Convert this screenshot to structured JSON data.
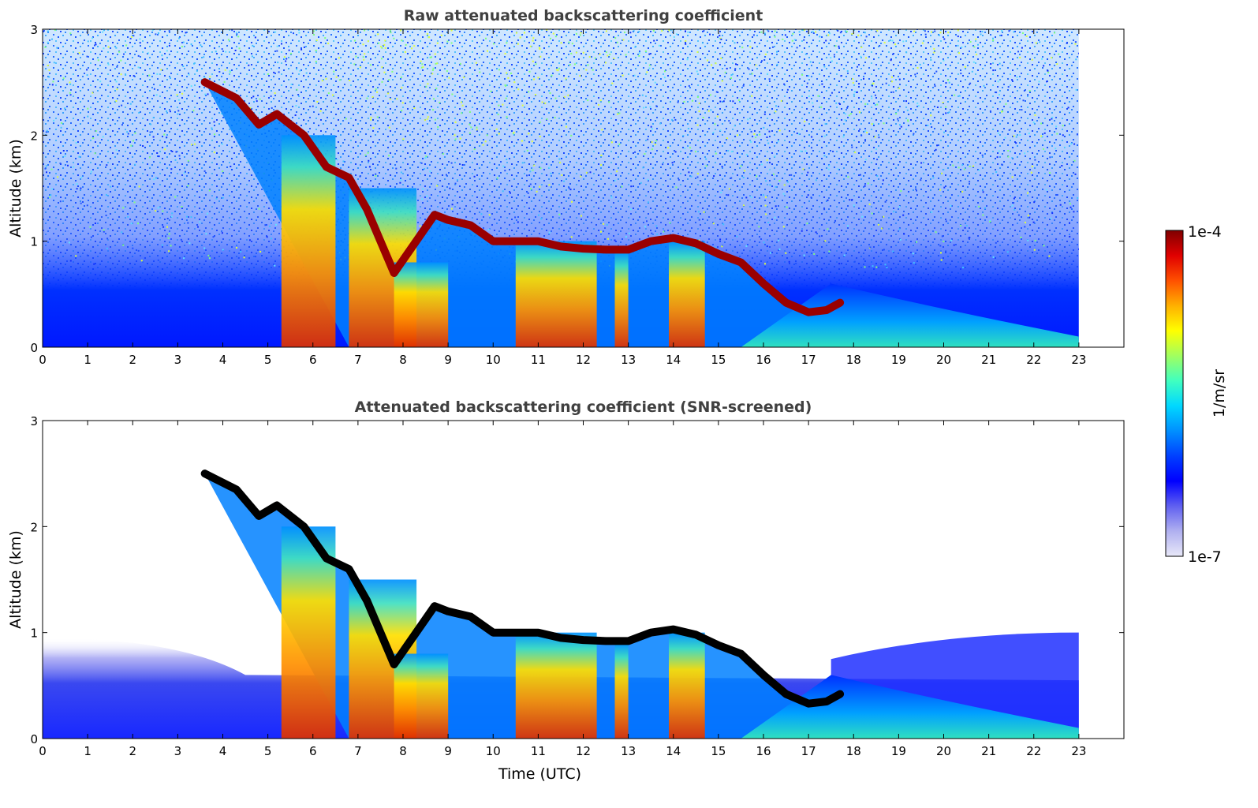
{
  "chart_data": [
    {
      "type": "heatmap",
      "title": "Raw attenuated backscattering coefficient",
      "xlabel": "",
      "ylabel": "Altitude (km)",
      "xlim": [
        0,
        24
      ],
      "ylim": [
        0,
        3
      ],
      "x_ticks": [
        "0",
        "1",
        "2",
        "3",
        "4",
        "5",
        "6",
        "7",
        "8",
        "9",
        "10",
        "11",
        "12",
        "13",
        "14",
        "15",
        "16",
        "17",
        "18",
        "19",
        "20",
        "21",
        "22",
        "23"
      ],
      "y_ticks": [
        "0",
        "1",
        "2",
        "3"
      ],
      "data_extent_hours": [
        0,
        23
      ],
      "cloud_base_layer": {
        "x": [
          3.6,
          4.3,
          4.8,
          5.2,
          5.8,
          6.3,
          6.8,
          7.2,
          7.5,
          7.8,
          8.7,
          9.0,
          9.5,
          10.0,
          10.5,
          11.0,
          11.5,
          12.0,
          12.5,
          13.0,
          13.5,
          14.0,
          14.5,
          15.0,
          15.5,
          16.0,
          16.5,
          17.0,
          17.4,
          17.7
        ],
        "y": [
          2.5,
          2.35,
          2.1,
          2.2,
          2.0,
          1.7,
          1.6,
          1.3,
          1.0,
          0.7,
          1.25,
          1.2,
          1.15,
          1.0,
          1.0,
          1.0,
          0.95,
          0.93,
          0.92,
          0.92,
          1.0,
          1.03,
          0.98,
          0.88,
          0.8,
          0.6,
          0.42,
          0.33,
          0.35,
          0.42
        ]
      },
      "precipitation_columns": [
        {
          "x0": 5.3,
          "x1": 6.5,
          "y_top": 2.0
        },
        {
          "x0": 6.8,
          "x1": 8.3,
          "y_top": 1.5
        },
        {
          "x0": 7.8,
          "x1": 9.0,
          "y_top": 0.8
        },
        {
          "x0": 10.5,
          "x1": 12.3,
          "y_top": 1.0
        },
        {
          "x0": 12.7,
          "x1": 13.0,
          "y_top": 0.9
        },
        {
          "x0": 13.9,
          "x1": 14.7,
          "y_top": 1.0
        }
      ],
      "noise": true
    },
    {
      "type": "heatmap",
      "title": "Attenuated backscattering coefficient (SNR-screened)",
      "xlabel": "Time (UTC)",
      "ylabel": "Altitude (km)",
      "xlim": [
        0,
        24
      ],
      "ylim": [
        0,
        3
      ],
      "x_ticks": [
        "0",
        "1",
        "2",
        "3",
        "4",
        "5",
        "6",
        "7",
        "8",
        "9",
        "10",
        "11",
        "12",
        "13",
        "14",
        "15",
        "16",
        "17",
        "18",
        "19",
        "20",
        "21",
        "22",
        "23"
      ],
      "y_ticks": [
        "0",
        "1",
        "2",
        "3"
      ],
      "data_extent_hours": [
        0,
        23
      ],
      "cloud_base_layer": {
        "x": [
          3.6,
          4.3,
          4.8,
          5.2,
          5.8,
          6.3,
          6.8,
          7.2,
          7.5,
          7.8,
          8.7,
          9.0,
          9.5,
          10.0,
          10.5,
          11.0,
          11.5,
          12.0,
          12.5,
          13.0,
          13.5,
          14.0,
          14.5,
          15.0,
          15.5,
          16.0,
          16.5,
          17.0,
          17.4,
          17.7
        ],
        "y": [
          2.5,
          2.35,
          2.1,
          2.2,
          2.0,
          1.7,
          1.6,
          1.3,
          1.0,
          0.7,
          1.25,
          1.2,
          1.15,
          1.0,
          1.0,
          1.0,
          0.95,
          0.93,
          0.92,
          0.92,
          1.0,
          1.03,
          0.98,
          0.88,
          0.8,
          0.6,
          0.42,
          0.33,
          0.35,
          0.42
        ]
      },
      "precipitation_columns": [
        {
          "x0": 5.3,
          "x1": 6.5,
          "y_top": 2.0
        },
        {
          "x0": 6.8,
          "x1": 8.3,
          "y_top": 1.5
        },
        {
          "x0": 7.8,
          "x1": 9.0,
          "y_top": 0.8
        },
        {
          "x0": 10.5,
          "x1": 12.3,
          "y_top": 1.0
        },
        {
          "x0": 12.7,
          "x1": 13.0,
          "y_top": 0.9
        },
        {
          "x0": 13.9,
          "x1": 14.7,
          "y_top": 1.0
        }
      ],
      "noise": false
    }
  ],
  "colorbar": {
    "label": "1/m/sr",
    "max_label": "1e-4",
    "min_label": "1e-7",
    "scale": "log",
    "range": [
      1e-07,
      0.0001
    ],
    "colors": [
      "#e8e8f8",
      "#b0b0f0",
      "#6060f0",
      "#0000ff",
      "#0040ff",
      "#0090ff",
      "#00d8ff",
      "#40ffc0",
      "#a0ff60",
      "#ffff00",
      "#ffb000",
      "#ff5000",
      "#e00000",
      "#800000"
    ]
  }
}
